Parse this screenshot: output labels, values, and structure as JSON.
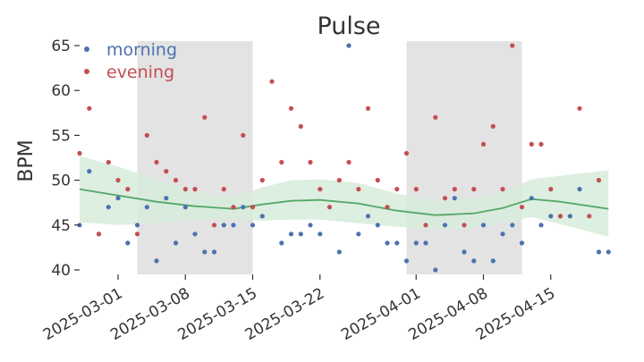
{
  "chart_data": {
    "type": "scatter",
    "title": "Pulse",
    "xlabel": "",
    "ylabel": "BPM",
    "x_ticks": [
      "2025-03-01",
      "2025-03-08",
      "2025-03-15",
      "2025-03-22",
      "2025-04-01",
      "2025-04-08",
      "2025-04-15"
    ],
    "y_ticks": [
      40,
      45,
      50,
      55,
      60,
      65
    ],
    "xlim": [
      "2025-02-25",
      "2025-04-22"
    ],
    "ylim": [
      39.5,
      65.5
    ],
    "grid": false,
    "legend_position": "top-left",
    "colors": {
      "morning": "#4c72b0",
      "evening": "#c44e52",
      "trend": "#55a868",
      "band": "#d7ecdb",
      "shade": "#e3e3e3"
    },
    "shaded_ranges": [
      [
        "2025-03-03",
        "2025-03-15"
      ],
      [
        "2025-03-31",
        "2025-04-12"
      ]
    ],
    "series": [
      {
        "name": "morning",
        "points": [
          [
            "2025-02-25",
            45
          ],
          [
            "2025-02-26",
            51
          ],
          [
            "2025-02-27",
            44
          ],
          [
            "2025-02-28",
            47
          ],
          [
            "2025-03-01",
            48
          ],
          [
            "2025-03-02",
            43
          ],
          [
            "2025-03-03",
            45
          ],
          [
            "2025-03-04",
            47
          ],
          [
            "2025-03-05",
            41
          ],
          [
            "2025-03-06",
            48
          ],
          [
            "2025-03-07",
            43
          ],
          [
            "2025-03-08",
            47
          ],
          [
            "2025-03-09",
            44
          ],
          [
            "2025-03-10",
            42
          ],
          [
            "2025-03-11",
            42
          ],
          [
            "2025-03-12",
            45
          ],
          [
            "2025-03-13",
            45
          ],
          [
            "2025-03-14",
            47
          ],
          [
            "2025-03-15",
            45
          ],
          [
            "2025-03-16",
            46
          ],
          [
            "2025-03-18",
            43
          ],
          [
            "2025-03-19",
            44
          ],
          [
            "2025-03-20",
            44
          ],
          [
            "2025-03-21",
            45
          ],
          [
            "2025-03-22",
            44
          ],
          [
            "2025-03-24",
            42
          ],
          [
            "2025-03-25",
            65
          ],
          [
            "2025-03-26",
            44
          ],
          [
            "2025-03-27",
            46
          ],
          [
            "2025-03-28",
            45
          ],
          [
            "2025-03-29",
            43
          ],
          [
            "2025-03-30",
            43
          ],
          [
            "2025-03-31",
            41
          ],
          [
            "2025-04-01",
            43
          ],
          [
            "2025-04-02",
            43
          ],
          [
            "2025-04-03",
            40
          ],
          [
            "2025-04-04",
            45
          ],
          [
            "2025-04-05",
            48
          ],
          [
            "2025-04-06",
            42
          ],
          [
            "2025-04-07",
            41
          ],
          [
            "2025-04-08",
            45
          ],
          [
            "2025-04-09",
            41
          ],
          [
            "2025-04-10",
            44
          ],
          [
            "2025-04-11",
            45
          ],
          [
            "2025-04-12",
            43
          ],
          [
            "2025-04-13",
            48
          ],
          [
            "2025-04-14",
            45
          ],
          [
            "2025-04-15",
            46
          ],
          [
            "2025-04-16",
            46
          ],
          [
            "2025-04-17",
            46
          ],
          [
            "2025-04-18",
            49
          ],
          [
            "2025-04-20",
            42
          ],
          [
            "2025-04-21",
            42
          ]
        ]
      },
      {
        "name": "evening",
        "points": [
          [
            "2025-02-25",
            53
          ],
          [
            "2025-02-26",
            58
          ],
          [
            "2025-02-27",
            44
          ],
          [
            "2025-02-28",
            52
          ],
          [
            "2025-03-01",
            50
          ],
          [
            "2025-03-02",
            49
          ],
          [
            "2025-03-03",
            44
          ],
          [
            "2025-03-04",
            55
          ],
          [
            "2025-03-05",
            52
          ],
          [
            "2025-03-06",
            51
          ],
          [
            "2025-03-07",
            50
          ],
          [
            "2025-03-08",
            49
          ],
          [
            "2025-03-09",
            49
          ],
          [
            "2025-03-10",
            57
          ],
          [
            "2025-03-11",
            45
          ],
          [
            "2025-03-12",
            49
          ],
          [
            "2025-03-13",
            47
          ],
          [
            "2025-03-14",
            55
          ],
          [
            "2025-03-15",
            47
          ],
          [
            "2025-03-16",
            50
          ],
          [
            "2025-03-17",
            61
          ],
          [
            "2025-03-18",
            52
          ],
          [
            "2025-03-19",
            58
          ],
          [
            "2025-03-20",
            56
          ],
          [
            "2025-03-21",
            52
          ],
          [
            "2025-03-22",
            49
          ],
          [
            "2025-03-23",
            47
          ],
          [
            "2025-03-24",
            50
          ],
          [
            "2025-03-25",
            52
          ],
          [
            "2025-03-26",
            49
          ],
          [
            "2025-03-27",
            58
          ],
          [
            "2025-03-28",
            50
          ],
          [
            "2025-03-29",
            47
          ],
          [
            "2025-03-30",
            49
          ],
          [
            "2025-03-31",
            53
          ],
          [
            "2025-04-01",
            49
          ],
          [
            "2025-04-02",
            45
          ],
          [
            "2025-04-03",
            57
          ],
          [
            "2025-04-04",
            48
          ],
          [
            "2025-04-05",
            49
          ],
          [
            "2025-04-06",
            45
          ],
          [
            "2025-04-07",
            49
          ],
          [
            "2025-04-08",
            54
          ],
          [
            "2025-04-09",
            56
          ],
          [
            "2025-04-10",
            49
          ],
          [
            "2025-04-11",
            65
          ],
          [
            "2025-04-12",
            47
          ],
          [
            "2025-04-13",
            54
          ],
          [
            "2025-04-14",
            54
          ],
          [
            "2025-04-15",
            49
          ],
          [
            "2025-04-16",
            46
          ],
          [
            "2025-04-18",
            58
          ],
          [
            "2025-04-19",
            46
          ],
          [
            "2025-04-20",
            50
          ]
        ]
      }
    ],
    "trend": {
      "points": [
        [
          "2025-02-25",
          49.0
        ],
        [
          "2025-03-01",
          48.3
        ],
        [
          "2025-03-05",
          47.6
        ],
        [
          "2025-03-09",
          47.1
        ],
        [
          "2025-03-13",
          46.8
        ],
        [
          "2025-03-16",
          47.3
        ],
        [
          "2025-03-19",
          47.7
        ],
        [
          "2025-03-22",
          47.8
        ],
        [
          "2025-03-26",
          47.4
        ],
        [
          "2025-03-30",
          46.6
        ],
        [
          "2025-04-03",
          46.1
        ],
        [
          "2025-04-07",
          46.3
        ],
        [
          "2025-04-10",
          46.9
        ],
        [
          "2025-04-13",
          47.9
        ],
        [
          "2025-04-16",
          47.6
        ],
        [
          "2025-04-21",
          46.8
        ]
      ],
      "lower": [
        [
          "2025-02-25",
          45.3
        ],
        [
          "2025-03-01",
          45.0
        ],
        [
          "2025-03-05",
          45.2
        ],
        [
          "2025-03-09",
          45.6
        ],
        [
          "2025-03-13",
          45.6
        ],
        [
          "2025-03-16",
          45.5
        ],
        [
          "2025-03-19",
          45.6
        ],
        [
          "2025-03-22",
          45.6
        ],
        [
          "2025-03-26",
          45.2
        ],
        [
          "2025-03-30",
          44.8
        ],
        [
          "2025-04-03",
          44.6
        ],
        [
          "2025-04-07",
          44.7
        ],
        [
          "2025-04-10",
          45.2
        ],
        [
          "2025-04-13",
          45.9
        ],
        [
          "2025-04-16",
          45.1
        ],
        [
          "2025-04-21",
          43.7
        ]
      ],
      "upper": [
        [
          "2025-02-25",
          52.7
        ],
        [
          "2025-03-01",
          51.5
        ],
        [
          "2025-03-05",
          50.1
        ],
        [
          "2025-03-09",
          48.7
        ],
        [
          "2025-03-13",
          48.1
        ],
        [
          "2025-03-16",
          49.2
        ],
        [
          "2025-03-19",
          50.0
        ],
        [
          "2025-03-22",
          50.1
        ],
        [
          "2025-03-26",
          49.7
        ],
        [
          "2025-03-30",
          48.5
        ],
        [
          "2025-04-03",
          47.7
        ],
        [
          "2025-04-07",
          48.0
        ],
        [
          "2025-04-10",
          48.7
        ],
        [
          "2025-04-13",
          50.1
        ],
        [
          "2025-04-16",
          50.5
        ],
        [
          "2025-04-21",
          51.1
        ]
      ]
    }
  }
}
